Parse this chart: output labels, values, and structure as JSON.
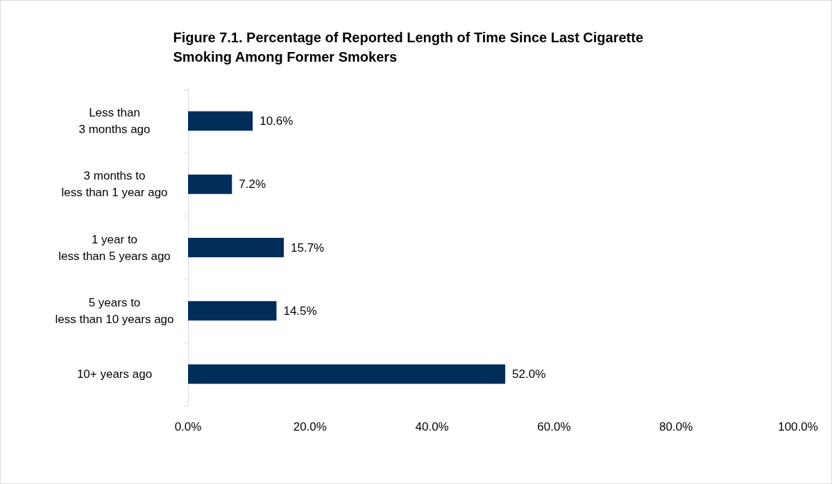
{
  "chart_data": {
    "type": "bar",
    "orientation": "horizontal",
    "title": "Figure 7.1. Percentage of Reported Length of Time Since Last Cigarette Smoking Among Former Smokers",
    "categories": [
      "Less than\n3 months ago",
      "3 months to\nless than 1 year ago",
      "1 year to\nless than 5 years ago",
      "5 years to\nless than 10 years ago",
      "10+ years ago"
    ],
    "values": [
      10.6,
      7.2,
      15.7,
      14.5,
      52.0
    ],
    "value_labels": [
      "10.6%",
      "7.2%",
      "15.7%",
      "14.5%",
      "52.0%"
    ],
    "color": "#002d5a",
    "xlim": [
      0,
      100
    ],
    "xticks": [
      {
        "value": 0,
        "label": "0.0%"
      },
      {
        "value": 20,
        "label": "20.0%"
      },
      {
        "value": 40,
        "label": "40.0%"
      },
      {
        "value": 60,
        "label": "60.0%"
      },
      {
        "value": 80,
        "label": "80.0%"
      },
      {
        "value": 100,
        "label": "100.0%"
      }
    ],
    "grid": false
  }
}
